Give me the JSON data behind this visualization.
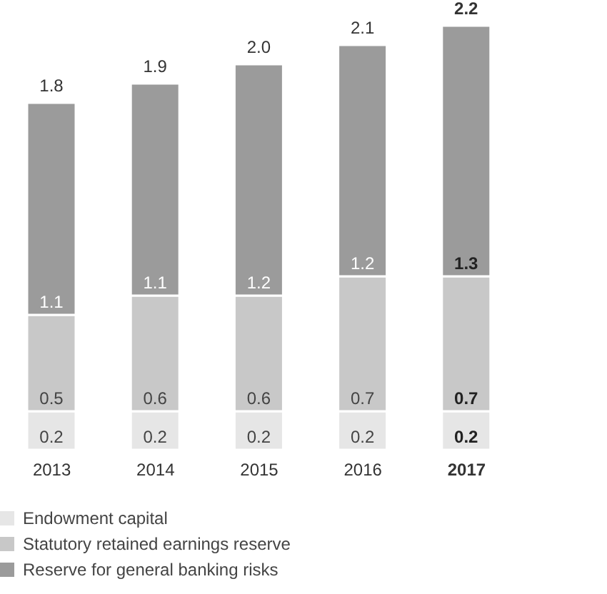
{
  "chart_data": {
    "type": "bar",
    "stacked": true,
    "categories": [
      "2013",
      "2014",
      "2015",
      "2016",
      "2017"
    ],
    "series": [
      {
        "name": "Endowment capital",
        "color": "#e6e6e6",
        "values": [
          0.2,
          0.2,
          0.2,
          0.2,
          0.2
        ]
      },
      {
        "name": "Statutory retained earnings reserve",
        "color": "#c8c8c8",
        "values": [
          0.5,
          0.6,
          0.6,
          0.7,
          0.7
        ]
      },
      {
        "name": "Reserve for general banking risks",
        "color": "#9b9b9b",
        "values": [
          1.1,
          1.1,
          1.2,
          1.2,
          1.3
        ]
      }
    ],
    "totals": [
      "1.8",
      "1.9",
      "2.0",
      "2.1",
      "2.2"
    ],
    "data_labels": true,
    "legend": "bottom"
  }
}
